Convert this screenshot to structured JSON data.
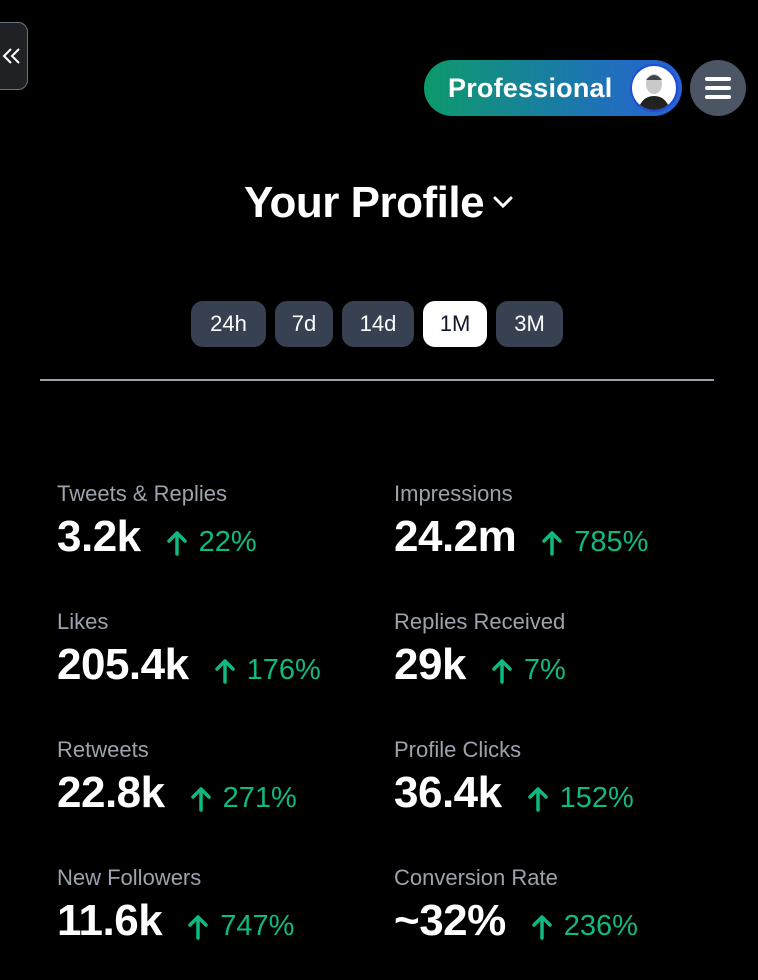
{
  "header": {
    "collapse_icon": "double-chevron-left-icon",
    "plan_label": "Professional",
    "menu_icon": "hamburger-icon"
  },
  "title": "Your Profile",
  "ranges": [
    {
      "label": "24h",
      "active": false
    },
    {
      "label": "7d",
      "active": false
    },
    {
      "label": "14d",
      "active": false
    },
    {
      "label": "1M",
      "active": true
    },
    {
      "label": "3M",
      "active": false
    }
  ],
  "colors": {
    "accent_green": "#10b981",
    "chip_bg": "#374151"
  },
  "stats": [
    {
      "label": "Tweets & Replies",
      "value": "3.2k",
      "change": "22%"
    },
    {
      "label": "Impressions",
      "value": "24.2m",
      "change": "785%"
    },
    {
      "label": "Likes",
      "value": "205.4k",
      "change": "176%"
    },
    {
      "label": "Replies Received",
      "value": "29k",
      "change": "7%"
    },
    {
      "label": "Retweets",
      "value": "22.8k",
      "change": "271%"
    },
    {
      "label": "Profile Clicks",
      "value": "36.4k",
      "change": "152%"
    },
    {
      "label": "New Followers",
      "value": "11.6k",
      "change": "747%"
    },
    {
      "label": "Conversion Rate",
      "value": "~32%",
      "change": "236%"
    }
  ]
}
